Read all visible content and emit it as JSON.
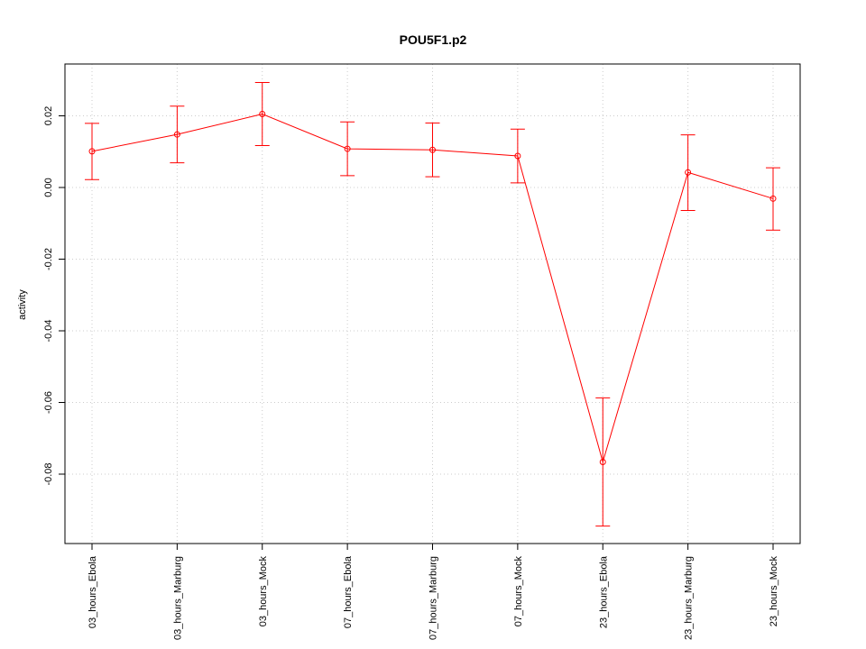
{
  "chart_data": {
    "type": "line",
    "title": "POU5F1.p2",
    "xlabel": "",
    "ylabel": "activity",
    "categories": [
      "03_hours_Ebola",
      "03_hours_Marburg",
      "03_hours_Mock",
      "07_hours_Ebola",
      "07_hours_Marburg",
      "07_hours_Mock",
      "23_hours_Ebola",
      "23_hours_Marburg",
      "23_hours_Mock"
    ],
    "series": [
      {
        "values": [
          0.0101,
          0.0148,
          0.0205,
          0.0108,
          0.0105,
          0.0088,
          -0.0766,
          0.0042,
          -0.0031
        ],
        "error_low": [
          0.0022,
          0.0069,
          0.0117,
          0.0033,
          0.003,
          0.0013,
          -0.0945,
          -0.0064,
          -0.0119
        ],
        "error_high": [
          0.0179,
          0.0227,
          0.0293,
          0.0183,
          0.018,
          0.0163,
          -0.0587,
          0.0147,
          0.0055
        ],
        "color": "#ff0000"
      }
    ],
    "yticks": [
      0.02,
      0.0,
      -0.02,
      -0.04,
      -0.06,
      -0.08
    ],
    "ytick_labels": [
      "0.02",
      "0.00",
      "-0.02",
      "-0.04",
      "-0.06",
      "-0.08"
    ],
    "ylim": [
      -0.0995,
      0.0345
    ],
    "grid": true,
    "grid_color": "#cccccc",
    "axis_color": "#000000"
  }
}
